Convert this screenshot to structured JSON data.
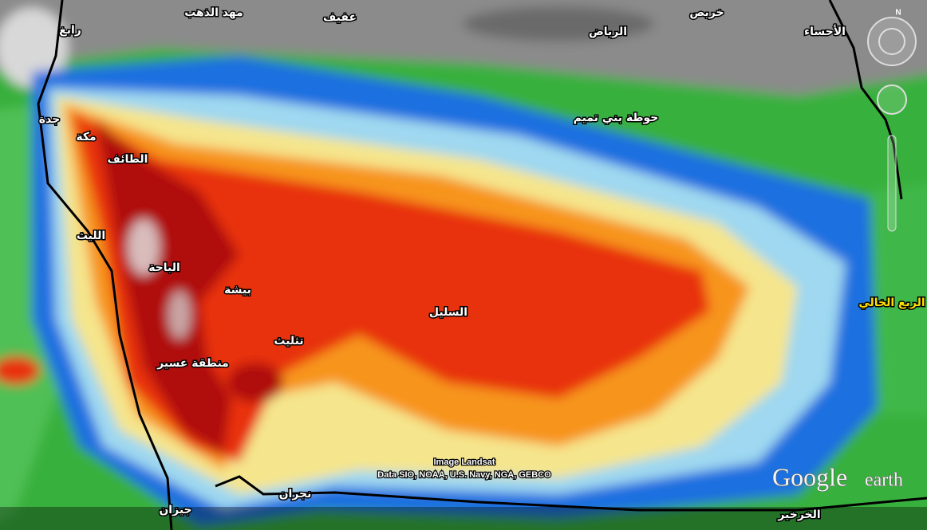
{
  "map": {
    "places": [
      {
        "name": "رابغ"
      },
      {
        "name": "مهد الذهب"
      },
      {
        "name": "عفيف"
      },
      {
        "name": "خريص"
      },
      {
        "name": "الرياض"
      },
      {
        "name": "الأحساء"
      },
      {
        "name": "جدة"
      },
      {
        "name": "مكة"
      },
      {
        "name": "حوطة بني تميم"
      },
      {
        "name": "الطائف"
      },
      {
        "name": "الليث"
      },
      {
        "name": "الباحة"
      },
      {
        "name": "بيشة"
      },
      {
        "name": "الربع الخالي"
      },
      {
        "name": "السليل"
      },
      {
        "name": "تثليث"
      },
      {
        "name": "منطقة عسير"
      },
      {
        "name": "نجران"
      },
      {
        "name": "جيزان"
      },
      {
        "name": "الخرخير"
      }
    ],
    "attribution": {
      "imagery": "Image Landsat",
      "data": "Data SIO, NOAA, U.S. Navy, NGA, GEBCO"
    },
    "logo": {
      "brand": "Google",
      "product": "earth"
    },
    "compass": "N"
  }
}
